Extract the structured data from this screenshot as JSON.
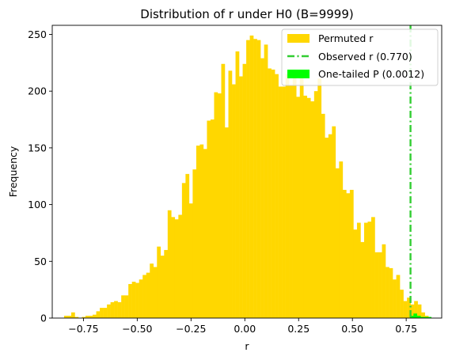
{
  "chart_data": {
    "type": "bar",
    "title": "Distribution of r under H0 (B=9999)",
    "xlabel": "r",
    "ylabel": "Frequency",
    "xlim": [
      -0.895,
      0.915
    ],
    "ylim": [
      0,
      258
    ],
    "xticks": [
      -0.75,
      -0.5,
      -0.25,
      0.0,
      0.25,
      0.5,
      0.75
    ],
    "xtick_labels": [
      "−0.75",
      "−0.50",
      "−0.25",
      "0.00",
      "0.25",
      "0.50",
      "0.75"
    ],
    "yticks": [
      0,
      50,
      100,
      150,
      200,
      250
    ],
    "ytick_labels": [
      "0",
      "50",
      "100",
      "150",
      "200",
      "250"
    ],
    "legend_position": "top-right",
    "series": [
      {
        "name": "Permuted r",
        "color": "#FFD700",
        "bin_start": -0.84,
        "bin_width": 0.0166,
        "values": [
          2,
          2,
          5,
          1,
          0,
          1,
          2,
          2,
          3,
          6,
          9,
          9,
          12,
          14,
          15,
          14,
          20,
          20,
          30,
          32,
          31,
          34,
          38,
          40,
          48,
          45,
          63,
          55,
          60,
          95,
          89,
          87,
          91,
          119,
          127,
          101,
          131,
          152,
          153,
          149,
          174,
          175,
          199,
          198,
          224,
          168,
          218,
          206,
          235,
          213,
          224,
          245,
          249,
          246,
          245,
          229,
          241,
          220,
          219,
          215,
          204,
          204,
          215,
          205,
          219,
          195,
          218,
          196,
          194,
          191,
          200,
          211,
          180,
          159,
          162,
          169,
          132,
          138,
          113,
          110,
          113,
          78,
          84,
          67,
          84,
          85,
          89,
          58,
          58,
          65,
          45,
          44,
          34,
          38,
          25,
          15,
          18,
          12,
          15,
          12,
          5,
          2
        ]
      },
      {
        "name": "Observed r (0.770)",
        "color": "#32CD32",
        "x": 0.77
      },
      {
        "name": "One-tailed P (0.0012)",
        "color": "#00FF00",
        "bin_start": 0.767,
        "bin_width": 0.0166,
        "values": [
          2,
          4,
          2,
          1,
          1,
          1
        ]
      }
    ]
  }
}
